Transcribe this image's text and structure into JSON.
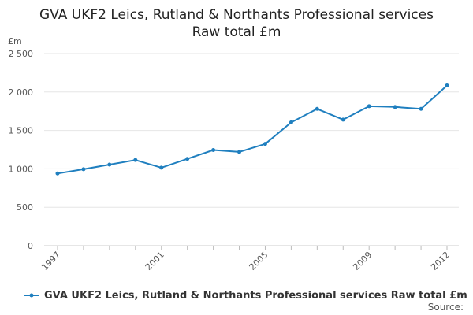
{
  "chart_data": {
    "type": "line",
    "title": "GVA UKF2 Leics, Rutland & Northants Professional services",
    "subtitle": "Raw total £m",
    "ylabel": "£m",
    "xlabel": "",
    "ylim": [
      0,
      2500
    ],
    "yticks": [
      0,
      500,
      1000,
      1500,
      2000,
      2500
    ],
    "ytick_labels": [
      "0",
      "500",
      "1 000",
      "1 500",
      "2 000",
      "2 500"
    ],
    "xticks": [
      1997,
      2001,
      2005,
      2009,
      2012
    ],
    "grid": true,
    "legend_position": "bottom",
    "series": [
      {
        "name": "GVA UKF2 Leics, Rutland & Northants Professional services Raw total £m",
        "color": "#1f7fbf",
        "x": [
          1997,
          1998,
          1999,
          2000,
          2001,
          2002,
          2003,
          2004,
          2005,
          2006,
          2007,
          2008,
          2009,
          2010,
          2011,
          2012
        ],
        "values": [
          940,
          995,
          1055,
          1115,
          1015,
          1130,
          1245,
          1220,
          1325,
          1605,
          1780,
          1640,
          1815,
          1805,
          1780,
          2085
        ]
      }
    ]
  },
  "source_label": "Source:"
}
